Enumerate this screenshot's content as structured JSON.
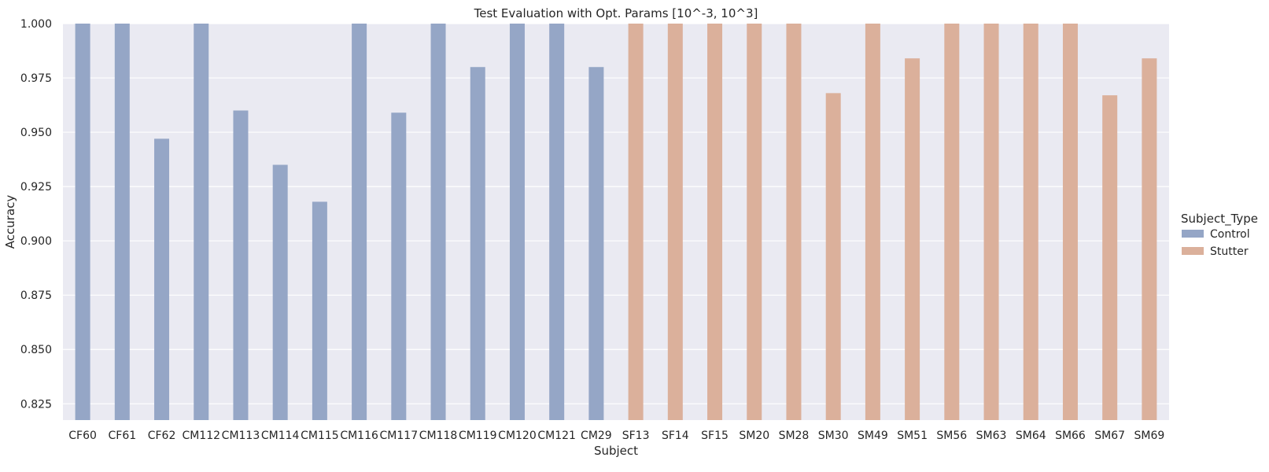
{
  "chart_data": {
    "type": "bar",
    "title": "Test Evaluation with Opt. Params [10^-3, 10^3]",
    "xlabel": "Subject",
    "ylabel": "Accuracy",
    "ylim": [
      0.8175,
      1.0
    ],
    "yticks": [
      "0.825",
      "0.850",
      "0.875",
      "0.900",
      "0.925",
      "0.950",
      "0.975",
      "1.000"
    ],
    "grid": true,
    "legend_placement": "right",
    "legend_title": "Subject_Type",
    "categories": [
      "CF60",
      "CF61",
      "CF62",
      "CM112",
      "CM113",
      "CM114",
      "CM115",
      "CM116",
      "CM117",
      "CM118",
      "CM119",
      "CM120",
      "CM121",
      "CM29",
      "SF13",
      "SF14",
      "SF15",
      "SM20",
      "SM28",
      "SM30",
      "SM49",
      "SM51",
      "SM56",
      "SM63",
      "SM64",
      "SM66",
      "SM67",
      "SM69"
    ],
    "series": [
      {
        "name": "Control",
        "color": "#95a6c6",
        "values": [
          1.0,
          1.0,
          0.947,
          1.0,
          0.96,
          0.935,
          0.918,
          1.0,
          0.959,
          1.0,
          0.98,
          1.0,
          1.0,
          0.98,
          null,
          null,
          null,
          null,
          null,
          null,
          null,
          null,
          null,
          null,
          null,
          null,
          null,
          null
        ]
      },
      {
        "name": "Stutter",
        "color": "#dbb09b",
        "values": [
          null,
          null,
          null,
          null,
          null,
          null,
          null,
          null,
          null,
          null,
          null,
          null,
          null,
          null,
          1.0,
          1.0,
          1.0,
          1.0,
          1.0,
          0.968,
          1.0,
          0.984,
          1.0,
          1.0,
          1.0,
          1.0,
          0.967,
          0.984
        ]
      }
    ]
  }
}
